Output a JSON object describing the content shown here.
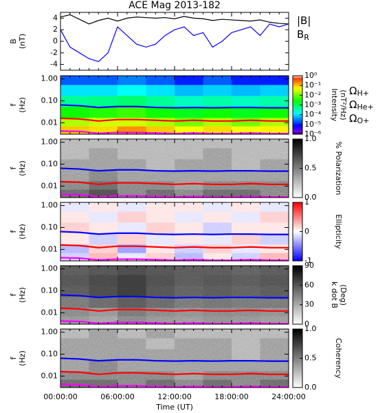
{
  "chart_data": [
    {
      "type": "line",
      "title": "ACE Mag 2013-182",
      "ylabel": [
        "B",
        "(nT)"
      ],
      "x": [
        0,
        1,
        2,
        3,
        4,
        5,
        6,
        7,
        8,
        9,
        10,
        11,
        12,
        13,
        14,
        15,
        16,
        17,
        18,
        19,
        20,
        21,
        22,
        23,
        24
      ],
      "xlim": [
        0,
        24
      ],
      "ylim": [
        -5,
        5
      ],
      "yticks": [
        -4,
        -2,
        0,
        2,
        4
      ],
      "series": [
        {
          "name": "|B|",
          "color": "#000000",
          "values": [
            4.2,
            4.6,
            3.8,
            3.0,
            3.6,
            4.0,
            3.5,
            4.0,
            4.2,
            4.1,
            4.0,
            4.1,
            3.9,
            4.3,
            4.0,
            3.9,
            3.6,
            3.8,
            3.7,
            3.6,
            3.5,
            3.7,
            3.3,
            3.1,
            3.0
          ]
        },
        {
          "name": "B",
          "sub": "R",
          "color": "#0000ff",
          "values": [
            2.0,
            -1.0,
            -2.0,
            -3.0,
            -3.5,
            -2.0,
            2.5,
            1.0,
            -0.5,
            -1.0,
            -0.5,
            1.0,
            2.0,
            2.5,
            1.0,
            1.5,
            -1.0,
            0.0,
            1.5,
            2.0,
            2.5,
            1.0,
            3.0,
            2.5,
            3.0
          ]
        }
      ]
    },
    {
      "type": "heatmap",
      "ylabel": [
        "f",
        "(Hz)"
      ],
      "yscale": "log",
      "ylim": [
        0.003,
        1.4
      ],
      "yticks": [
        {
          "value": 1,
          "label": "1.00"
        },
        {
          "value": 0.1,
          "label": "0.10"
        },
        {
          "value": 0.01,
          "label": "0.01"
        }
      ],
      "xlim": [
        0,
        24
      ],
      "tcenters": [
        1.5,
        4.5,
        7.5,
        10.5,
        13.5,
        16.5,
        19.5,
        22.5
      ],
      "fcenters": [
        0.005,
        0.01,
        0.03,
        0.1,
        0.3,
        1.0
      ],
      "cmap": "rainbow",
      "zscale": "log",
      "zlim": [
        1e-06,
        1
      ],
      "zticks": [
        {
          "value": 1,
          "label": "10⁰"
        },
        {
          "value": 0.1,
          "label": "10⁻¹"
        },
        {
          "value": 0.01,
          "label": "10⁻²"
        },
        {
          "value": 0.001,
          "label": "10⁻³"
        },
        {
          "value": 0.0001,
          "label": "10⁻⁴"
        },
        {
          "value": 1e-05,
          "label": "10⁻⁵"
        },
        {
          "value": 1e-06,
          "label": "10⁻⁶"
        }
      ],
      "zlabel": [
        "Intensity",
        "(nT²/Hz)"
      ],
      "z": [
        [
          0.1,
          0.08,
          0.2,
          0.1,
          0.05,
          0.08,
          0.05,
          0.06
        ],
        [
          0.02,
          0.03,
          0.03,
          0.02,
          0.01,
          0.02,
          0.01,
          0.02
        ],
        [
          0.003,
          0.004,
          0.005,
          0.003,
          0.002,
          0.003,
          0.002,
          0.003
        ],
        [
          0.0005,
          0.0006,
          0.0008,
          0.0005,
          0.0003,
          0.0004,
          0.0003,
          0.0004
        ],
        [
          0.0001,
          0.0001,
          0.00015,
          0.0001,
          6e-05,
          8e-05,
          6e-05,
          8e-05
        ],
        [
          2e-05,
          2e-05,
          3e-05,
          2e-05,
          1e-05,
          2e-05,
          1e-05,
          1e-05
        ]
      ],
      "x": [
        0,
        2,
        4,
        6,
        8,
        10,
        12,
        14,
        16,
        18,
        20,
        22,
        24
      ],
      "lines": [
        {
          "name": "Ω",
          "sub": "H+",
          "color": "#0000ff",
          "values": [
            0.065,
            0.06,
            0.05,
            0.055,
            0.055,
            0.05,
            0.048,
            0.05,
            0.048,
            0.05,
            0.05,
            0.048,
            0.048
          ]
        },
        {
          "name": "Ω",
          "sub": "He+",
          "color": "#ff0000",
          "values": [
            0.016,
            0.015,
            0.012,
            0.014,
            0.014,
            0.013,
            0.012,
            0.013,
            0.012,
            0.012,
            0.013,
            0.012,
            0.012
          ]
        },
        {
          "name": "Ω",
          "sub": "O+",
          "color": "#ff00ff",
          "values": [
            0.0042,
            0.004,
            0.0033,
            0.0036,
            0.0036,
            0.0034,
            0.0032,
            0.0034,
            0.0032,
            0.0032,
            0.0034,
            0.0032,
            0.0032
          ]
        }
      ]
    },
    {
      "type": "heatmap",
      "ylabel": [
        "f",
        "(Hz)"
      ],
      "cmap": "grey",
      "zlim": [
        0,
        1
      ],
      "zticks": [
        {
          "value": 0,
          "label": "0.0"
        },
        {
          "value": 0.5,
          "label": "0.5"
        },
        {
          "value": 1,
          "label": "1.0"
        }
      ],
      "zlabel": [
        "% Polarization"
      ],
      "z": [
        [
          0.6,
          0.7,
          0.5,
          0.6,
          0.5,
          0.6,
          0.6,
          0.5
        ],
        [
          0.5,
          0.6,
          0.5,
          0.5,
          0.4,
          0.5,
          0.5,
          0.5
        ],
        [
          0.4,
          0.5,
          0.4,
          0.4,
          0.4,
          0.4,
          0.4,
          0.4
        ],
        [
          0.4,
          0.4,
          0.4,
          0.3,
          0.4,
          0.4,
          0.3,
          0.4
        ],
        [
          0.3,
          0.4,
          0.3,
          0.3,
          0.3,
          0.4,
          0.3,
          0.3
        ],
        [
          0.3,
          0.3,
          0.3,
          0.3,
          0.3,
          0.3,
          0.3,
          0.3
        ]
      ]
    },
    {
      "type": "heatmap",
      "ylabel": [
        "f",
        "(Hz)"
      ],
      "cmap": "bwr",
      "zlim": [
        -1,
        1
      ],
      "zticks": [
        -1,
        0,
        1
      ],
      "zlabel": [
        "Ellipticity"
      ],
      "z": [
        [
          -0.2,
          0.3,
          -0.1,
          0.2,
          -0.3,
          0.1,
          -0.2,
          0.3
        ],
        [
          -0.3,
          0.2,
          -0.4,
          0.1,
          -0.2,
          0.2,
          -0.1,
          0.1
        ],
        [
          0.1,
          -0.2,
          0.2,
          -0.1,
          0.1,
          -0.1,
          0.2,
          -0.2
        ],
        [
          0.2,
          0.1,
          -0.1,
          0.2,
          0.1,
          -0.2,
          0.1,
          0.1
        ],
        [
          0.1,
          -0.1,
          0.2,
          0.1,
          -0.1,
          0.1,
          -0.1,
          0.2
        ],
        [
          -0.1,
          0.1,
          -0.1,
          0.1,
          0.1,
          -0.1,
          0.1,
          -0.1
        ]
      ]
    },
    {
      "type": "heatmap",
      "ylabel": [
        "f",
        "(Hz)"
      ],
      "cmap": "grey",
      "zlim": [
        0,
        90
      ],
      "zticks": [
        0,
        30,
        60,
        90
      ],
      "zlabel": [
        "k dot B",
        "(Deg)"
      ],
      "z": [
        [
          40,
          35,
          45,
          40,
          38,
          42,
          40,
          38
        ],
        [
          45,
          40,
          50,
          45,
          42,
          45,
          44,
          42
        ],
        [
          50,
          55,
          60,
          55,
          50,
          52,
          50,
          50
        ],
        [
          60,
          65,
          70,
          62,
          58,
          60,
          58,
          60
        ],
        [
          62,
          66,
          70,
          64,
          60,
          62,
          60,
          62
        ],
        [
          60,
          62,
          65,
          62,
          60,
          60,
          58,
          60
        ]
      ]
    },
    {
      "type": "heatmap",
      "ylabel": [
        "f",
        "(Hz)"
      ],
      "cmap": "grey",
      "zlim": [
        0,
        1
      ],
      "zticks": [
        {
          "value": 0,
          "label": "0.0"
        },
        {
          "value": 0.5,
          "label": "0.5"
        },
        {
          "value": 1,
          "label": "1.0"
        }
      ],
      "zlabel": [
        "Coherency"
      ],
      "xlabel": "Time (UT)",
      "xticks": [
        {
          "value": 0,
          "label": "00:00:00"
        },
        {
          "value": 6,
          "label": "06:00:00"
        },
        {
          "value": 12,
          "label": "12:00:00"
        },
        {
          "value": 18,
          "label": "18:00:00"
        },
        {
          "value": 24,
          "label": "24:00:00"
        }
      ],
      "z": [
        [
          0.6,
          0.6,
          0.5,
          0.6,
          0.5,
          0.6,
          0.5,
          0.6
        ],
        [
          0.5,
          0.5,
          0.5,
          0.5,
          0.4,
          0.5,
          0.5,
          0.5
        ],
        [
          0.4,
          0.5,
          0.4,
          0.4,
          0.4,
          0.4,
          0.4,
          0.4
        ],
        [
          0.4,
          0.4,
          0.4,
          0.4,
          0.4,
          0.4,
          0.3,
          0.4
        ],
        [
          0.4,
          0.4,
          0.4,
          0.3,
          0.4,
          0.4,
          0.3,
          0.4
        ],
        [
          0.3,
          0.4,
          0.3,
          0.4,
          0.3,
          0.3,
          0.3,
          0.3
        ]
      ]
    }
  ]
}
